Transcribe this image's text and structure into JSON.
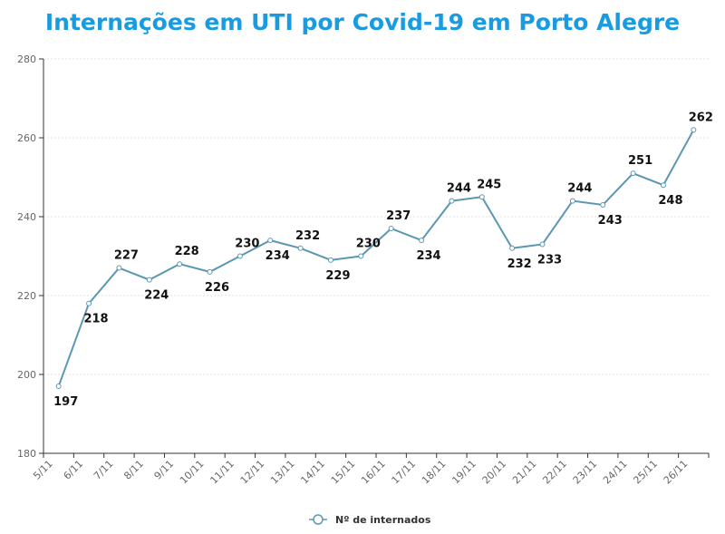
{
  "chart_data": {
    "type": "line",
    "title": "Internações em UTI por Covid-19 em Porto Alegre",
    "categories": [
      "5/11",
      "6/11",
      "7/11",
      "8/11",
      "9/11",
      "10/11",
      "11/11",
      "12/11",
      "13/11",
      "14/11",
      "15/11",
      "16/11",
      "17/11",
      "18/11",
      "19/11",
      "20/11",
      "21/11",
      "22/11",
      "23/11",
      "24/11",
      "25/11",
      "26/11"
    ],
    "series": [
      {
        "name": "Nº de internados",
        "values": [
          197,
          218,
          227,
          224,
          228,
          226,
          230,
          234,
          232,
          229,
          230,
          237,
          234,
          244,
          245,
          232,
          233,
          244,
          243,
          251,
          248,
          262
        ]
      }
    ],
    "ylim": [
      180,
      280
    ],
    "yticks": [
      180,
      200,
      220,
      240,
      260,
      280
    ],
    "grid": true,
    "legend": "bottom",
    "color": "#5b97b3"
  }
}
